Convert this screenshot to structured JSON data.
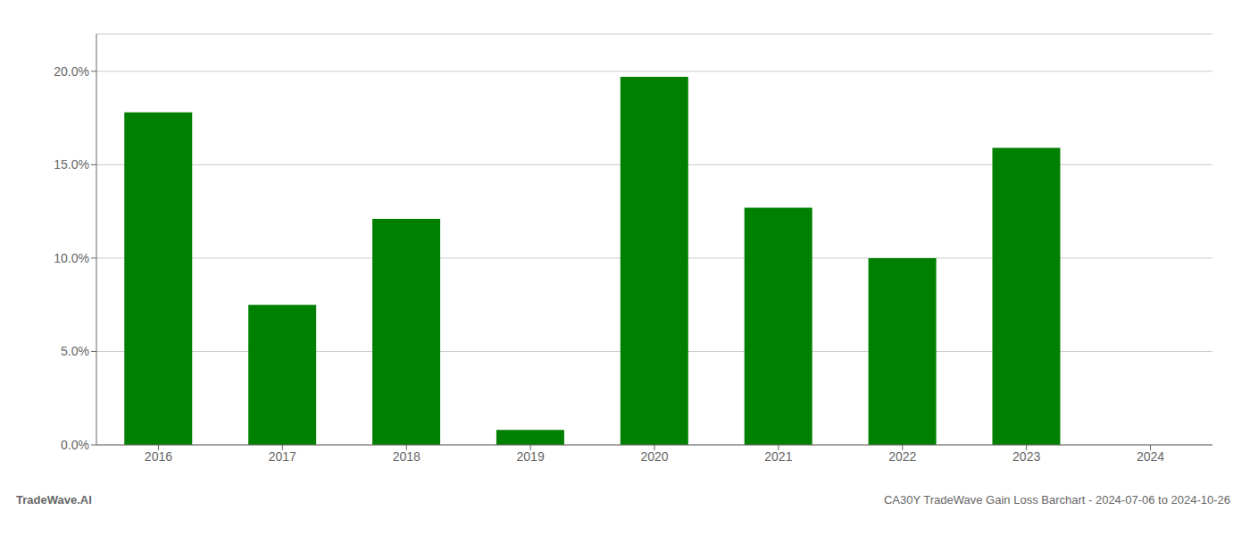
{
  "chart_data": {
    "type": "bar",
    "categories": [
      "2016",
      "2017",
      "2018",
      "2019",
      "2020",
      "2021",
      "2022",
      "2023",
      "2024"
    ],
    "values": [
      0.178,
      0.075,
      0.121,
      0.008,
      0.197,
      0.127,
      0.1,
      0.159,
      0.0
    ],
    "color": "#008000",
    "ylim": [
      0,
      0.22
    ],
    "yticks": [
      {
        "value": 0.0,
        "label": "0.0%"
      },
      {
        "value": 0.05,
        "label": "5.0%"
      },
      {
        "value": 0.1,
        "label": "10.0%"
      },
      {
        "value": 0.15,
        "label": "15.0%"
      },
      {
        "value": 0.2,
        "label": "20.0%"
      }
    ],
    "grid": true,
    "annotations": [
      "TradeWave.AI",
      "CA30Y TradeWave Gain Loss Barchart - 2024-07-06 to 2024-10-26"
    ]
  }
}
